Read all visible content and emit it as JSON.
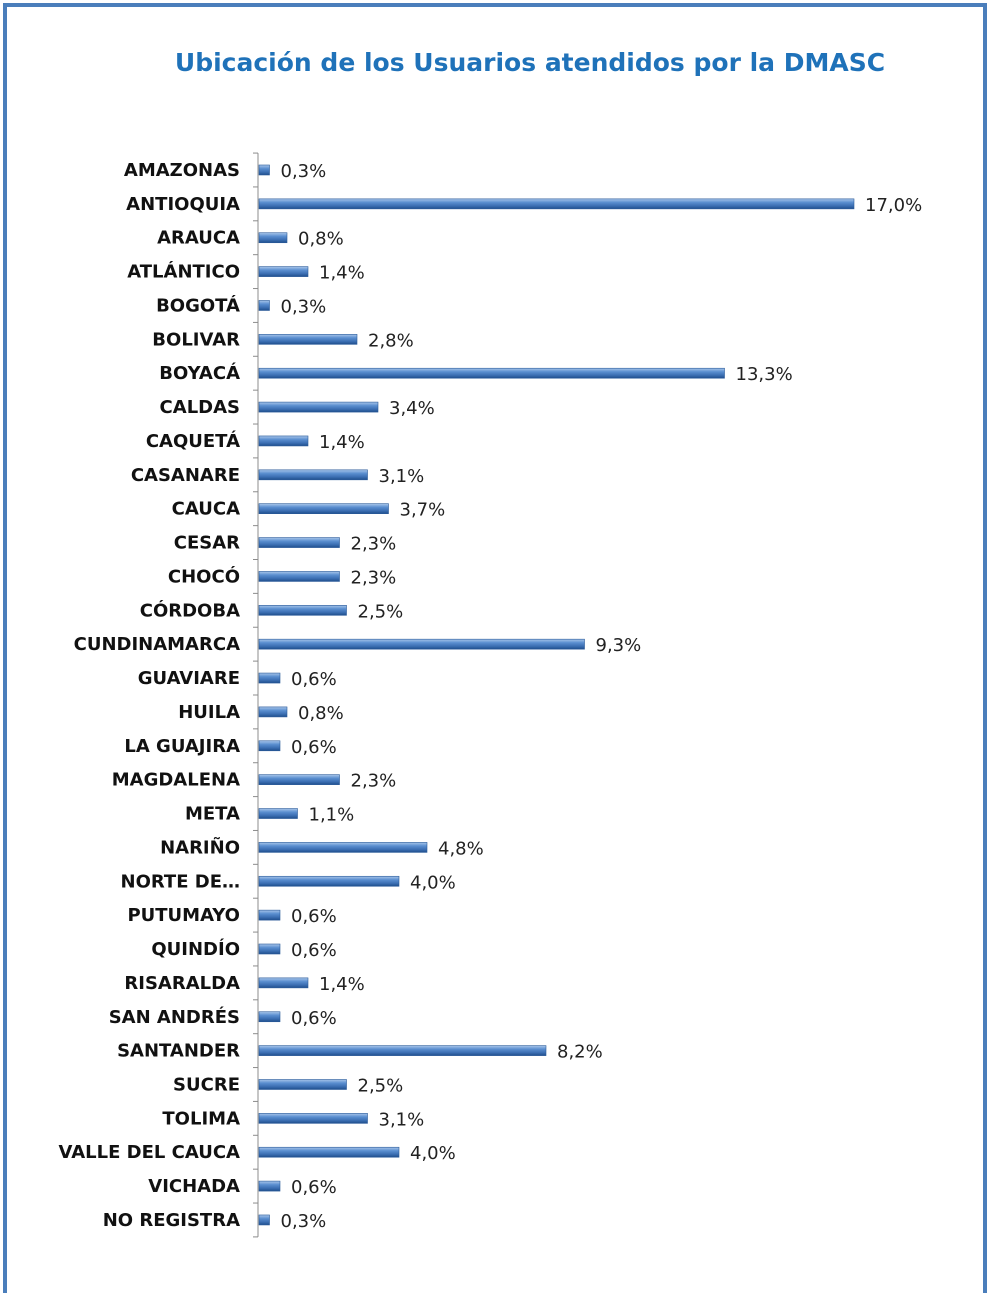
{
  "chart_data": {
    "type": "bar",
    "orientation": "horizontal",
    "title": "Ubicación de los Usuarios atendidos por la DMASC",
    "xlabel": "",
    "ylabel": "",
    "grid": false,
    "legend": "none",
    "xlim": [
      0,
      17.0
    ],
    "bar_color": "#4a7ebb",
    "categories": [
      "AMAZONAS",
      "ANTIOQUIA",
      "ARAUCA",
      "ATLÁNTICO",
      "BOGOTÁ",
      "BOLIVAR",
      "BOYACÁ",
      "CALDAS",
      "CAQUETÁ",
      "CASANARE",
      "CAUCA",
      "CESAR",
      "CHOCÓ",
      "CÓRDOBA",
      "CUNDINAMARCA",
      "GUAVIARE",
      "HUILA",
      "LA GUAJIRA",
      "MAGDALENA",
      "META",
      "NARIÑO",
      "NORTE DE…",
      "PUTUMAYO",
      "QUINDÍO",
      "RISARALDA",
      "SAN ANDRÉS",
      "SANTANDER",
      "SUCRE",
      "TOLIMA",
      "VALLE DEL CAUCA",
      "VICHADA",
      "NO REGISTRA"
    ],
    "values": [
      0.3,
      17.0,
      0.8,
      1.4,
      0.3,
      2.8,
      13.3,
      3.4,
      1.4,
      3.1,
      3.7,
      2.3,
      2.3,
      2.5,
      9.3,
      0.6,
      0.8,
      0.6,
      2.3,
      1.1,
      4.8,
      4.0,
      0.6,
      0.6,
      1.4,
      0.6,
      8.2,
      2.5,
      3.1,
      4.0,
      0.6,
      0.3
    ],
    "data_labels": [
      "0,3%",
      "17,0%",
      "0,8%",
      "1,4%",
      "0,3%",
      "2,8%",
      "13,3%",
      "3,4%",
      "1,4%",
      "3,1%",
      "3,7%",
      "2,3%",
      "2,3%",
      "2,5%",
      "9,3%",
      "0,6%",
      "0,8%",
      "0,6%",
      "2,3%",
      "1,1%",
      "4,8%",
      "4,0%",
      "0,6%",
      "0,6%",
      "1,4%",
      "0,6%",
      "8,2%",
      "2,5%",
      "3,1%",
      "4,0%",
      "0,6%",
      "0,3%"
    ]
  }
}
